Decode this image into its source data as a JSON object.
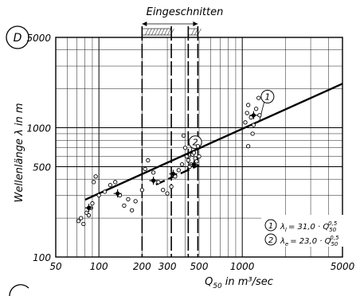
{
  "chart_data": {
    "type": "scatter",
    "panel_label": "D",
    "title": "Eingeschnitten",
    "xlabel": "Q",
    "xlabel_sub": "50",
    "xlabel_unit": "in m³/sec",
    "ylabel": "Wellenlänge  λ in m",
    "xscale": "log",
    "yscale": "log",
    "xlim": [
      50,
      5000
    ],
    "ylim": [
      100,
      5000
    ],
    "xticks": [
      50,
      100,
      200,
      300,
      500,
      1000,
      5000
    ],
    "xtick_labels": [
      "50",
      "100",
      "200",
      "300",
      "500",
      "1000",
      "5000"
    ],
    "yticks": [
      100,
      500,
      1000,
      5000
    ],
    "ytick_labels": [
      "100",
      "500",
      "1000",
      "5000"
    ],
    "grid": true,
    "incised_bands": [
      [
        200,
        320
      ],
      [
        420,
        490
      ]
    ],
    "lines": [
      {
        "id": "1",
        "coefficient": 31.0,
        "exponent": 0.5,
        "x_range": [
          80,
          5000
        ],
        "style": "solid"
      },
      {
        "id": "2",
        "coefficient": 23.0,
        "exponent": 0.5,
        "x_range": [
          250,
          500
        ],
        "style": "dashed"
      }
    ],
    "legend": [
      {
        "id": "1",
        "symbol": "λ",
        "sub": "I",
        "text": "= 31,0 · Q",
        "qsub": "50",
        "exp": "0,5"
      },
      {
        "id": "2",
        "symbol": "λ",
        "sub": "e",
        "text": "= 23,0 · Q",
        "qsub": "50",
        "exp": "0,5"
      }
    ],
    "legend_position": "bottom-right",
    "points": [
      [
        72,
        190
      ],
      [
        75,
        200
      ],
      [
        78,
        180
      ],
      [
        82,
        220
      ],
      [
        85,
        210
      ],
      [
        88,
        240
      ],
      [
        90,
        260
      ],
      [
        92,
        380
      ],
      [
        95,
        420
      ],
      [
        100,
        300
      ],
      [
        110,
        320
      ],
      [
        120,
        360
      ],
      [
        130,
        380
      ],
      [
        140,
        300
      ],
      [
        150,
        250
      ],
      [
        160,
        280
      ],
      [
        170,
        230
      ],
      [
        180,
        270
      ],
      [
        200,
        330
      ],
      [
        210,
        480
      ],
      [
        220,
        560
      ],
      [
        240,
        450
      ],
      [
        260,
        380
      ],
      [
        280,
        330
      ],
      [
        300,
        310
      ],
      [
        320,
        350
      ],
      [
        340,
        420
      ],
      [
        360,
        470
      ],
      [
        380,
        520
      ],
      [
        390,
        870
      ],
      [
        400,
        700
      ],
      [
        410,
        600
      ],
      [
        420,
        560
      ],
      [
        430,
        500
      ],
      [
        440,
        520
      ],
      [
        450,
        620
      ],
      [
        460,
        640
      ],
      [
        470,
        580
      ],
      [
        480,
        550
      ],
      [
        490,
        720
      ],
      [
        500,
        600
      ],
      [
        1050,
        1100
      ],
      [
        1080,
        1300
      ],
      [
        1100,
        1500
      ],
      [
        1150,
        1200
      ],
      [
        1180,
        900
      ],
      [
        1200,
        1050
      ],
      [
        1250,
        1400
      ],
      [
        1300,
        1700
      ],
      [
        1320,
        1250
      ],
      [
        1100,
        720
      ]
    ],
    "means": [
      [
        85,
        240
      ],
      [
        135,
        310
      ],
      [
        240,
        390
      ],
      [
        330,
        440
      ],
      [
        460,
        520
      ],
      [
        1200,
        1250
      ]
    ]
  }
}
